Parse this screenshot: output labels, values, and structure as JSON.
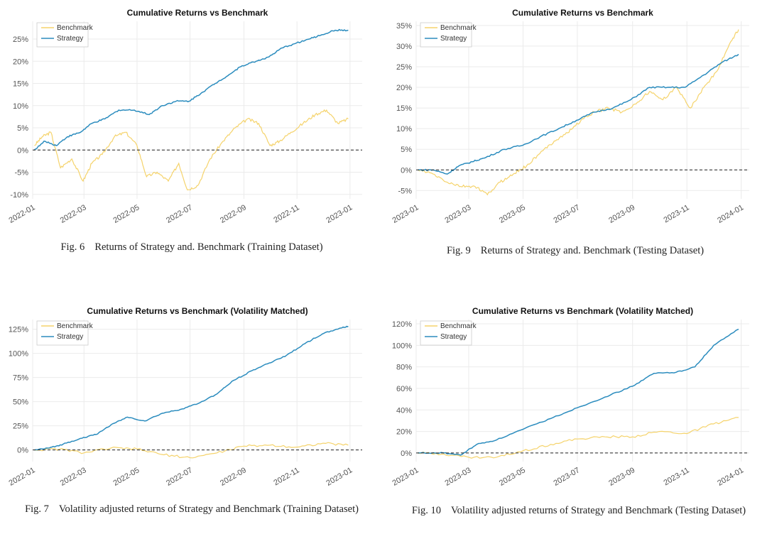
{
  "panels": [
    {
      "caption_num": "Fig. 6",
      "caption_text": "Returns of Strategy and. Benchmark (Training Dataset)"
    },
    {
      "caption_num": "Fig. 9",
      "caption_text": "Returns of Strategy and. Benchmark (Testing Dataset)"
    },
    {
      "caption_num": "Fig. 7",
      "caption_text": "Volatility adjusted returns of Strategy and Benchmark (Training Dataset)"
    },
    {
      "caption_num": "Fig. 10",
      "caption_text": "Volatility adjusted returns of Strategy and Benchmark (Testing Dataset)"
    }
  ],
  "colors": {
    "benchmark": "#f5d36b",
    "strategy": "#2b8cbe",
    "grid": "#ebebeb",
    "zero_line": "#222222"
  },
  "chart_data": [
    {
      "type": "line",
      "title": "Cumulative Returns vs Benchmark",
      "xlabel": "",
      "ylabel": "",
      "x_ticks": [
        "2022-01",
        "2022-03",
        "2022-05",
        "2022-07",
        "2022-09",
        "2022-11",
        "2023-01"
      ],
      "y_ticks": [
        "-10%",
        "-5%",
        "0%",
        "5%",
        "10%",
        "15%",
        "20%",
        "25%"
      ],
      "ylim": [
        -11,
        29
      ],
      "xlim": [
        "2022-01-01",
        "2023-01-15"
      ],
      "legend": "top-left",
      "grid": true,
      "series": [
        {
          "name": "Benchmark",
          "x": [
            "2022-01-03",
            "2022-01-12",
            "2022-01-22",
            "2022-02-02",
            "2022-02-15",
            "2022-02-28",
            "2022-03-10",
            "2022-03-22",
            "2022-04-05",
            "2022-04-18",
            "2022-05-01",
            "2022-05-12",
            "2022-05-24",
            "2022-06-06",
            "2022-06-18",
            "2022-06-28",
            "2022-07-10",
            "2022-07-24",
            "2022-08-08",
            "2022-08-22",
            "2022-09-05",
            "2022-09-18",
            "2022-10-01",
            "2022-10-12",
            "2022-10-25",
            "2022-11-08",
            "2022-11-22",
            "2022-12-05",
            "2022-12-18",
            "2022-12-30"
          ],
          "y": [
            1,
            3,
            4,
            -4,
            -2,
            -7,
            -3,
            -1,
            3,
            4,
            1,
            -6,
            -5,
            -7,
            -3,
            -9,
            -8,
            -2,
            2,
            5,
            7,
            6,
            1,
            2,
            4,
            6,
            8,
            9,
            6,
            7
          ]
        },
        {
          "name": "Strategy",
          "x": [
            "2022-01-03",
            "2022-01-15",
            "2022-01-28",
            "2022-02-10",
            "2022-02-25",
            "2022-03-10",
            "2022-03-25",
            "2022-04-10",
            "2022-04-28",
            "2022-05-15",
            "2022-05-30",
            "2022-06-15",
            "2022-06-30",
            "2022-07-15",
            "2022-07-30",
            "2022-08-15",
            "2022-08-30",
            "2022-09-15",
            "2022-09-30",
            "2022-10-15",
            "2022-10-30",
            "2022-11-15",
            "2022-11-30",
            "2022-12-15",
            "2022-12-30"
          ],
          "y": [
            0,
            2,
            1,
            3,
            4,
            6,
            7,
            9,
            9,
            8,
            10,
            11,
            11,
            13,
            15,
            17,
            19,
            20,
            21,
            23,
            24,
            25,
            26,
            27,
            27
          ]
        }
      ]
    },
    {
      "type": "line",
      "title": "Cumulative Returns vs Benchmark",
      "xlabel": "",
      "ylabel": "",
      "x_ticks": [
        "2023-01",
        "2023-03",
        "2023-05",
        "2023-07",
        "2023-09",
        "2023-11",
        "2024-01"
      ],
      "y_ticks": [
        "-5%",
        "0%",
        "5%",
        "10%",
        "15%",
        "20%",
        "25%",
        "30%",
        "35%"
      ],
      "ylim": [
        -7,
        36
      ],
      "xlim": [
        "2023-01-01",
        "2024-01-10"
      ],
      "legend": "top-left",
      "grid": true,
      "series": [
        {
          "name": "Benchmark",
          "x": [
            "2023-01-03",
            "2023-01-20",
            "2023-02-05",
            "2023-02-20",
            "2023-03-08",
            "2023-03-22",
            "2023-04-05",
            "2023-04-20",
            "2023-05-05",
            "2023-05-20",
            "2023-06-05",
            "2023-06-20",
            "2023-07-05",
            "2023-07-20",
            "2023-08-05",
            "2023-08-20",
            "2023-09-05",
            "2023-09-20",
            "2023-10-05",
            "2023-10-20",
            "2023-11-05",
            "2023-11-20",
            "2023-12-05",
            "2023-12-20",
            "2023-12-29"
          ],
          "y": [
            0,
            -1,
            -3,
            -4,
            -4,
            -6,
            -3,
            -1,
            1,
            4,
            7,
            9,
            12,
            14,
            15,
            14,
            16,
            19,
            17,
            20,
            15,
            20,
            24,
            31,
            34
          ]
        },
        {
          "name": "Strategy",
          "x": [
            "2023-01-03",
            "2023-01-20",
            "2023-02-05",
            "2023-02-18",
            "2023-03-05",
            "2023-03-20",
            "2023-04-10",
            "2023-05-01",
            "2023-05-20",
            "2023-06-10",
            "2023-06-30",
            "2023-07-20",
            "2023-08-10",
            "2023-08-30",
            "2023-09-20",
            "2023-10-10",
            "2023-10-30",
            "2023-11-20",
            "2023-12-10",
            "2023-12-29"
          ],
          "y": [
            0,
            0,
            -1,
            1,
            2,
            3,
            5,
            6,
            8,
            10,
            12,
            14,
            15,
            17,
            20,
            20,
            20,
            23,
            26,
            28
          ]
        }
      ]
    },
    {
      "type": "line",
      "title": "Cumulative Returns vs Benchmark (Volatility Matched)",
      "xlabel": "",
      "ylabel": "",
      "x_ticks": [
        "2022-01",
        "2022-03",
        "2022-05",
        "2022-07",
        "2022-09",
        "2022-11",
        "2023-01"
      ],
      "y_ticks": [
        "0%",
        "25%",
        "50%",
        "75%",
        "100%",
        "125%"
      ],
      "ylim": [
        -12,
        135
      ],
      "xlim": [
        "2022-01-01",
        "2023-01-15"
      ],
      "legend": "top-left",
      "grid": true,
      "series": [
        {
          "name": "Benchmark",
          "x": [
            "2022-01-03",
            "2022-02-01",
            "2022-03-01",
            "2022-04-01",
            "2022-05-01",
            "2022-06-01",
            "2022-07-01",
            "2022-08-01",
            "2022-09-01",
            "2022-10-01",
            "2022-11-01",
            "2022-12-01",
            "2022-12-30"
          ],
          "y": [
            0,
            1,
            -3,
            2,
            1,
            -5,
            -8,
            -3,
            4,
            5,
            3,
            7,
            5
          ]
        },
        {
          "name": "Strategy",
          "x": [
            "2022-01-03",
            "2022-01-20",
            "2022-02-05",
            "2022-02-25",
            "2022-03-15",
            "2022-04-01",
            "2022-04-20",
            "2022-05-10",
            "2022-05-30",
            "2022-06-20",
            "2022-07-10",
            "2022-08-01",
            "2022-08-20",
            "2022-09-10",
            "2022-09-30",
            "2022-10-20",
            "2022-11-10",
            "2022-11-30",
            "2022-12-20",
            "2022-12-30"
          ],
          "y": [
            0,
            2,
            6,
            12,
            16,
            26,
            34,
            30,
            38,
            42,
            48,
            58,
            72,
            82,
            90,
            98,
            110,
            120,
            126,
            128
          ]
        }
      ]
    },
    {
      "type": "line",
      "title": "Cumulative Returns vs Benchmark (Volatility Matched)",
      "xlabel": "",
      "ylabel": "",
      "x_ticks": [
        "2023-01",
        "2023-03",
        "2023-05",
        "2023-07",
        "2023-09",
        "2023-11",
        "2024-01"
      ],
      "y_ticks": [
        "0%",
        "20%",
        "40%",
        "60%",
        "80%",
        "100%",
        "120%"
      ],
      "ylim": [
        -8,
        124
      ],
      "xlim": [
        "2023-01-01",
        "2024-01-10"
      ],
      "legend": "top-left",
      "grid": true,
      "series": [
        {
          "name": "Benchmark",
          "x": [
            "2023-01-03",
            "2023-02-01",
            "2023-03-01",
            "2023-04-01",
            "2023-05-01",
            "2023-06-01",
            "2023-07-01",
            "2023-08-01",
            "2023-09-01",
            "2023-10-01",
            "2023-11-01",
            "2023-12-01",
            "2023-12-29"
          ],
          "y": [
            0,
            -1,
            -4,
            -4,
            2,
            8,
            13,
            15,
            15,
            20,
            18,
            27,
            33
          ]
        },
        {
          "name": "Strategy",
          "x": [
            "2023-01-03",
            "2023-02-01",
            "2023-02-20",
            "2023-03-10",
            "2023-04-01",
            "2023-05-01",
            "2023-06-01",
            "2023-07-01",
            "2023-08-01",
            "2023-09-01",
            "2023-09-25",
            "2023-10-20",
            "2023-11-10",
            "2023-12-01",
            "2023-12-29"
          ],
          "y": [
            0,
            0,
            -2,
            8,
            12,
            22,
            32,
            42,
            52,
            62,
            74,
            75,
            80,
            100,
            115
          ]
        }
      ]
    }
  ]
}
